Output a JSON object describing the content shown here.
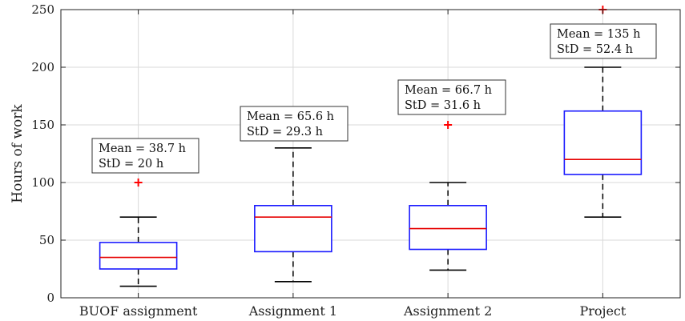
{
  "chart_data": {
    "type": "boxplot",
    "ylabel": "Hours of work",
    "ylim": [
      0,
      250
    ],
    "yticks": [
      "0",
      "50",
      "100",
      "150",
      "200",
      "250"
    ],
    "ytick_values": [
      0,
      50,
      100,
      150,
      200,
      250
    ],
    "grid": true,
    "categories": [
      "BUOF assignment",
      "Assignment 1",
      "Assignment 2",
      "Project"
    ],
    "boxes": [
      {
        "whisker_low": 10,
        "q1": 25,
        "median": 35,
        "q3": 48,
        "whisker_high": 70,
        "outliers": [
          100
        ]
      },
      {
        "whisker_low": 14,
        "q1": 40,
        "median": 70,
        "q3": 80,
        "whisker_high": 130,
        "outliers": []
      },
      {
        "whisker_low": 24,
        "q1": 42,
        "median": 60,
        "q3": 80,
        "whisker_high": 100,
        "outliers": [
          150
        ]
      },
      {
        "whisker_low": 70,
        "q1": 107,
        "median": 120,
        "q3": 162,
        "whisker_high": 200,
        "outliers": [
          250
        ]
      }
    ],
    "annotations": [
      {
        "line1": "Mean = 38.7 h",
        "line2": "StD = 20 h"
      },
      {
        "line1": "Mean = 65.6 h",
        "line2": "StD = 29.3 h"
      },
      {
        "line1": "Mean = 66.7 h",
        "line2": "StD = 31.6 h"
      },
      {
        "line1": "Mean = 135 h",
        "line2": "StD = 52.4 h"
      }
    ],
    "colors": {
      "box": "#1a1aff",
      "median": "#e60000",
      "whisker": "#000000",
      "outlier": "#ff0000",
      "grid": "#d9d9d9"
    }
  }
}
